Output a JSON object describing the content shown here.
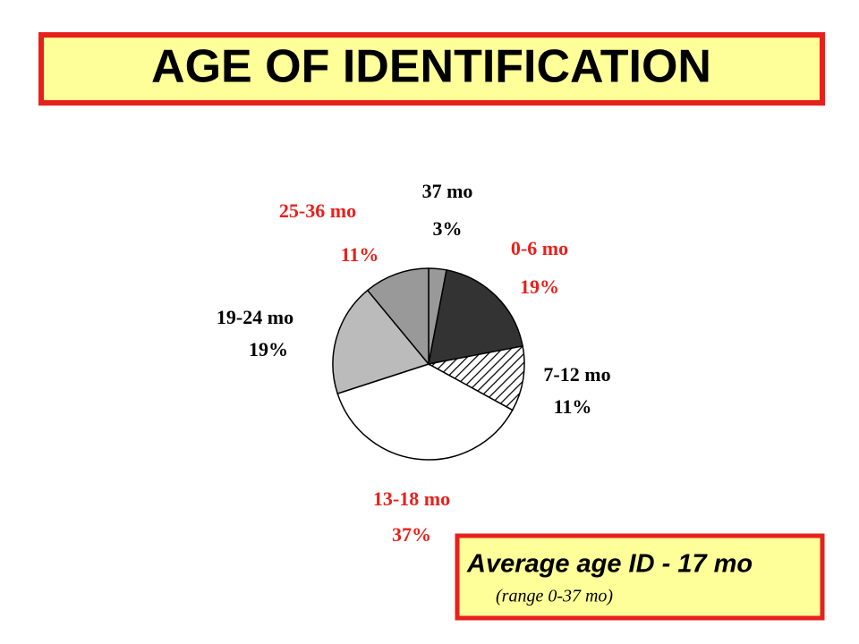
{
  "chart_data": {
    "type": "pie",
    "title": "AGE OF IDENTIFICATION",
    "categories": [
      "37 mo",
      "0-6 mo",
      "7-12 mo",
      "13-18 mo",
      "19-24 mo",
      "25-36 mo"
    ],
    "values": [
      3,
      19,
      11,
      37,
      19,
      11
    ],
    "value_labels": [
      "3%",
      "19%",
      "11%",
      "37%",
      "19%",
      "11%"
    ],
    "colors": [
      "#999999",
      "#333333",
      "#ffffff",
      "#ffffff",
      "#bbbbbb",
      "#999999"
    ],
    "hatch": [
      false,
      false,
      true,
      false,
      false,
      false
    ],
    "label_colors": [
      "#000000",
      "#e8201c",
      "#000000",
      "#e8201c",
      "#000000",
      "#e8201c"
    ],
    "note": {
      "headline": "Average age ID - 17 mo",
      "detail": "(range 0-37 mo)"
    }
  }
}
